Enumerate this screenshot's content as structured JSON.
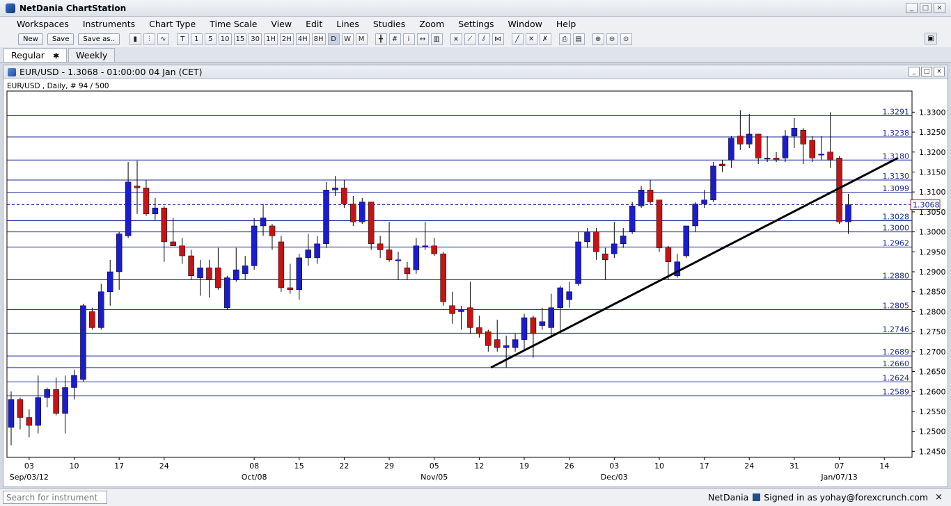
{
  "app": {
    "title": "NetDania ChartStation"
  },
  "window_controls": [
    "_",
    "□",
    "×"
  ],
  "menu": [
    "Workspaces",
    "Instruments",
    "Chart Type",
    "Time Scale",
    "View",
    "Edit",
    "Lines",
    "Studies",
    "Zoom",
    "Settings",
    "Window",
    "Help"
  ],
  "toolbar": {
    "text_buttons": [
      "New",
      "Save",
      "Save as.."
    ],
    "chart_type_icons": [
      "candlestick-icon",
      "ohlc-bar-icon",
      "line-chart-icon"
    ],
    "periods": [
      "T",
      "1",
      "5",
      "10",
      "15",
      "30",
      "1H",
      "2H",
      "4H",
      "8H",
      "D",
      "W",
      "M"
    ],
    "active_period": "D",
    "tool_icons": [
      "crosshair-icon",
      "grid-icon",
      "info-icon",
      "scroll-icon",
      "volume-icon",
      "fibonacci-icon",
      "trendline-icon",
      "channel-icon",
      "gann-icon",
      "draw-line-icon",
      "delete-icon",
      "delete-all-icon",
      "print-icon",
      "print-preview-icon",
      "zoom-in-icon",
      "zoom-out-icon",
      "zoom-reset-icon"
    ]
  },
  "tabs": [
    {
      "label": "Regular",
      "active": true,
      "close": "✱"
    },
    {
      "label": "Weekly",
      "active": false
    }
  ],
  "chart_window": {
    "title": "EUR/USD - 1.3068 - 01:00:00  04 Jan (CET)",
    "info": "EUR/USD , Daily, # 94 / 500",
    "current_price_label": "1.3068"
  },
  "chart_data": {
    "type": "candlestick",
    "instrument": "EUR/USD",
    "timeframe": "Daily",
    "x_ticks": [
      "03",
      "10",
      "17",
      "24",
      "08",
      "15",
      "22",
      "29",
      "05",
      "12",
      "19",
      "26",
      "03",
      "10",
      "17",
      "24",
      "31",
      "07",
      "14"
    ],
    "x_tick_index": [
      2,
      7,
      12,
      17,
      27,
      32,
      37,
      42,
      47,
      52,
      57,
      62,
      67,
      72,
      77,
      82,
      87,
      92,
      97
    ],
    "x_period_labels": [
      {
        "label": "Sep/03/12",
        "index": 2
      },
      {
        "label": "Oct/08",
        "index": 27
      },
      {
        "label": "Nov/05",
        "index": 47
      },
      {
        "label": "Dec/03",
        "index": 67
      },
      {
        "label": "Jan/07/13",
        "index": 92
      }
    ],
    "y_ticks": [
      "1.3300",
      "1.3250",
      "1.3200",
      "1.3150",
      "1.3100",
      "1.3050",
      "1.3000",
      "1.2950",
      "1.2900",
      "1.2850",
      "1.2800",
      "1.2750",
      "1.2700",
      "1.2650",
      "1.2600",
      "1.2550",
      "1.2500",
      "1.2450"
    ],
    "ylim": [
      1.2435,
      1.3325
    ],
    "ref_lines": [
      {
        "label": "1.3291",
        "value": 1.3291
      },
      {
        "label": "1.3238",
        "value": 1.3238
      },
      {
        "label": "1.3180",
        "value": 1.318
      },
      {
        "label": "1.3130",
        "value": 1.313
      },
      {
        "label": "1.3099",
        "value": 1.3099
      },
      {
        "label": "1.3028",
        "value": 1.3028
      },
      {
        "label": "1.3000",
        "value": 1.3
      },
      {
        "label": "1.2962",
        "value": 1.2962
      },
      {
        "label": "1.2880",
        "value": 1.288
      },
      {
        "label": "1.2805",
        "value": 1.2805
      },
      {
        "label": "1.2746",
        "value": 1.2746
      },
      {
        "label": "1.2689",
        "value": 1.2689
      },
      {
        "label": "1.2660",
        "value": 1.266
      },
      {
        "label": "1.2624",
        "value": 1.2624
      },
      {
        "label": "1.2589",
        "value": 1.2589
      }
    ],
    "current_price": 1.3068,
    "trendline": {
      "start": {
        "index": 53.3,
        "value": 1.266
      },
      "end": {
        "index": 98.5,
        "value": 1.3185
      }
    },
    "colors": {
      "bull": "#1c1ccf",
      "bear": "#c41414",
      "ref_line": "#1a2a9a",
      "trendline": "#000000",
      "current_price": "#1a2a9a"
    },
    "candles": [
      {
        "o": 1.251,
        "h": 1.26,
        "l": 1.2465,
        "c": 1.258
      },
      {
        "o": 1.258,
        "h": 1.2585,
        "l": 1.2505,
        "c": 1.2535
      },
      {
        "o": 1.2535,
        "h": 1.2555,
        "l": 1.2485,
        "c": 1.2515
      },
      {
        "o": 1.2515,
        "h": 1.264,
        "l": 1.2495,
        "c": 1.2585
      },
      {
        "o": 1.2585,
        "h": 1.261,
        "l": 1.256,
        "c": 1.2605
      },
      {
        "o": 1.2605,
        "h": 1.2635,
        "l": 1.254,
        "c": 1.2545
      },
      {
        "o": 1.2545,
        "h": 1.264,
        "l": 1.2495,
        "c": 1.261
      },
      {
        "o": 1.261,
        "h": 1.2655,
        "l": 1.258,
        "c": 1.264
      },
      {
        "o": 1.263,
        "h": 1.282,
        "l": 1.2625,
        "c": 1.2815
      },
      {
        "o": 1.28,
        "h": 1.281,
        "l": 1.2755,
        "c": 1.276
      },
      {
        "o": 1.276,
        "h": 1.287,
        "l": 1.2755,
        "c": 1.285
      },
      {
        "o": 1.285,
        "h": 1.293,
        "l": 1.2815,
        "c": 1.29
      },
      {
        "o": 1.29,
        "h": 1.3,
        "l": 1.2855,
        "c": 1.2995
      },
      {
        "o": 1.299,
        "h": 1.3175,
        "l": 1.2985,
        "c": 1.3125
      },
      {
        "o": 1.3115,
        "h": 1.3178,
        "l": 1.3045,
        "c": 1.311
      },
      {
        "o": 1.311,
        "h": 1.313,
        "l": 1.304,
        "c": 1.3045
      },
      {
        "o": 1.3045,
        "h": 1.3085,
        "l": 1.303,
        "c": 1.306
      },
      {
        "o": 1.306,
        "h": 1.3065,
        "l": 1.2925,
        "c": 1.2975
      },
      {
        "o": 1.2975,
        "h": 1.3035,
        "l": 1.297,
        "c": 1.2965
      },
      {
        "o": 1.2965,
        "h": 1.2985,
        "l": 1.292,
        "c": 1.294
      },
      {
        "o": 1.294,
        "h": 1.2955,
        "l": 1.288,
        "c": 1.289
      },
      {
        "o": 1.2885,
        "h": 1.293,
        "l": 1.284,
        "c": 1.291
      },
      {
        "o": 1.291,
        "h": 1.293,
        "l": 1.2835,
        "c": 1.288
      },
      {
        "o": 1.291,
        "h": 1.296,
        "l": 1.2855,
        "c": 1.286
      },
      {
        "o": 1.281,
        "h": 1.289,
        "l": 1.2805,
        "c": 1.2885
      },
      {
        "o": 1.288,
        "h": 1.296,
        "l": 1.2875,
        "c": 1.2905
      },
      {
        "o": 1.2895,
        "h": 1.294,
        "l": 1.288,
        "c": 1.2915
      },
      {
        "o": 1.2915,
        "h": 1.3035,
        "l": 1.2905,
        "c": 1.3015
      },
      {
        "o": 1.3015,
        "h": 1.307,
        "l": 1.299,
        "c": 1.3035
      },
      {
        "o": 1.3015,
        "h": 1.302,
        "l": 1.2955,
        "c": 1.299
      },
      {
        "o": 1.2975,
        "h": 1.299,
        "l": 1.285,
        "c": 1.286
      },
      {
        "o": 1.286,
        "h": 1.292,
        "l": 1.2845,
        "c": 1.2855
      },
      {
        "o": 1.2855,
        "h": 1.2945,
        "l": 1.283,
        "c": 1.2935
      },
      {
        "o": 1.2935,
        "h": 1.2995,
        "l": 1.2915,
        "c": 1.2955
      },
      {
        "o": 1.2935,
        "h": 1.299,
        "l": 1.292,
        "c": 1.297
      },
      {
        "o": 1.297,
        "h": 1.3125,
        "l": 1.296,
        "c": 1.3105
      },
      {
        "o": 1.3105,
        "h": 1.314,
        "l": 1.309,
        "c": 1.311
      },
      {
        "o": 1.311,
        "h": 1.313,
        "l": 1.306,
        "c": 1.307
      },
      {
        "o": 1.307,
        "h": 1.309,
        "l": 1.3015,
        "c": 1.3025
      },
      {
        "o": 1.3025,
        "h": 1.3085,
        "l": 1.302,
        "c": 1.3075
      },
      {
        "o": 1.3075,
        "h": 1.3075,
        "l": 1.2955,
        "c": 1.297
      },
      {
        "o": 1.297,
        "h": 1.299,
        "l": 1.2935,
        "c": 1.2955
      },
      {
        "o": 1.2955,
        "h": 1.3025,
        "l": 1.2925,
        "c": 1.293
      },
      {
        "o": 1.293,
        "h": 1.295,
        "l": 1.288,
        "c": 1.293
      },
      {
        "o": 1.291,
        "h": 1.2925,
        "l": 1.288,
        "c": 1.2895
      },
      {
        "o": 1.2905,
        "h": 1.2985,
        "l": 1.2895,
        "c": 1.2965
      },
      {
        "o": 1.2965,
        "h": 1.3025,
        "l": 1.2955,
        "c": 1.2965
      },
      {
        "o": 1.2965,
        "h": 1.2985,
        "l": 1.294,
        "c": 1.2945
      },
      {
        "o": 1.2945,
        "h": 1.295,
        "l": 1.2815,
        "c": 1.2825
      },
      {
        "o": 1.2815,
        "h": 1.285,
        "l": 1.277,
        "c": 1.2795
      },
      {
        "o": 1.28,
        "h": 1.2815,
        "l": 1.2755,
        "c": 1.2805
      },
      {
        "o": 1.281,
        "h": 1.2875,
        "l": 1.2745,
        "c": 1.276
      },
      {
        "o": 1.276,
        "h": 1.279,
        "l": 1.2735,
        "c": 1.2745
      },
      {
        "o": 1.275,
        "h": 1.2755,
        "l": 1.27,
        "c": 1.2715
      },
      {
        "o": 1.273,
        "h": 1.278,
        "l": 1.27,
        "c": 1.271
      },
      {
        "o": 1.271,
        "h": 1.274,
        "l": 1.266,
        "c": 1.2715
      },
      {
        "o": 1.271,
        "h": 1.2745,
        "l": 1.27,
        "c": 1.273
      },
      {
        "o": 1.273,
        "h": 1.2795,
        "l": 1.2705,
        "c": 1.2785
      },
      {
        "o": 1.2785,
        "h": 1.279,
        "l": 1.2685,
        "c": 1.2745
      },
      {
        "o": 1.2765,
        "h": 1.281,
        "l": 1.2755,
        "c": 1.2775
      },
      {
        "o": 1.276,
        "h": 1.2845,
        "l": 1.2735,
        "c": 1.281
      },
      {
        "o": 1.281,
        "h": 1.2865,
        "l": 1.2745,
        "c": 1.286
      },
      {
        "o": 1.283,
        "h": 1.2875,
        "l": 1.281,
        "c": 1.285
      },
      {
        "o": 1.287,
        "h": 1.3,
        "l": 1.2865,
        "c": 1.2975
      },
      {
        "o": 1.2975,
        "h": 1.301,
        "l": 1.296,
        "c": 1.3
      },
      {
        "o": 1.3,
        "h": 1.301,
        "l": 1.293,
        "c": 1.295
      },
      {
        "o": 1.2945,
        "h": 1.296,
        "l": 1.288,
        "c": 1.293
      },
      {
        "o": 1.2945,
        "h": 1.3025,
        "l": 1.2935,
        "c": 1.297
      },
      {
        "o": 1.297,
        "h": 1.301,
        "l": 1.296,
        "c": 1.299
      },
      {
        "o": 1.3,
        "h": 1.3075,
        "l": 1.2995,
        "c": 1.3065
      },
      {
        "o": 1.3065,
        "h": 1.3115,
        "l": 1.306,
        "c": 1.3105
      },
      {
        "o": 1.3105,
        "h": 1.313,
        "l": 1.307,
        "c": 1.3075
      },
      {
        "o": 1.308,
        "h": 1.308,
        "l": 1.295,
        "c": 1.296
      },
      {
        "o": 1.296,
        "h": 1.2965,
        "l": 1.288,
        "c": 1.2925
      },
      {
        "o": 1.289,
        "h": 1.2945,
        "l": 1.2885,
        "c": 1.2925
      },
      {
        "o": 1.294,
        "h": 1.3015,
        "l": 1.2935,
        "c": 1.3015
      },
      {
        "o": 1.3015,
        "h": 1.3075,
        "l": 1.3,
        "c": 1.307
      },
      {
        "o": 1.307,
        "h": 1.3105,
        "l": 1.306,
        "c": 1.308
      },
      {
        "o": 1.308,
        "h": 1.3175,
        "l": 1.3075,
        "c": 1.3165
      },
      {
        "o": 1.317,
        "h": 1.318,
        "l": 1.315,
        "c": 1.3165
      },
      {
        "o": 1.318,
        "h": 1.324,
        "l": 1.316,
        "c": 1.3235
      },
      {
        "o": 1.324,
        "h": 1.3305,
        "l": 1.3205,
        "c": 1.322
      },
      {
        "o": 1.322,
        "h": 1.3295,
        "l": 1.321,
        "c": 1.3245
      },
      {
        "o": 1.3245,
        "h": 1.3245,
        "l": 1.317,
        "c": 1.3185
      },
      {
        "o": 1.3185,
        "h": 1.324,
        "l": 1.3175,
        "c": 1.3185
      },
      {
        "o": 1.3185,
        "h": 1.32,
        "l": 1.3175,
        "c": 1.318
      },
      {
        "o": 1.3185,
        "h": 1.3255,
        "l": 1.3175,
        "c": 1.324
      },
      {
        "o": 1.324,
        "h": 1.3285,
        "l": 1.321,
        "c": 1.326
      },
      {
        "o": 1.3255,
        "h": 1.326,
        "l": 1.317,
        "c": 1.322
      },
      {
        "o": 1.323,
        "h": 1.324,
        "l": 1.3175,
        "c": 1.3185
      },
      {
        "o": 1.3195,
        "h": 1.324,
        "l": 1.318,
        "c": 1.3195
      },
      {
        "o": 1.32,
        "h": 1.33,
        "l": 1.316,
        "c": 1.318
      },
      {
        "o": 1.3185,
        "h": 1.319,
        "l": 1.302,
        "c": 1.3025
      },
      {
        "o": 1.3025,
        "h": 1.3095,
        "l": 1.2995,
        "c": 1.3068
      }
    ]
  },
  "status": {
    "search_placeholder": "Search for instrument",
    "brand": "NetDania",
    "signed_in": "Signed in as yohay@forexcrunch.com",
    "close": "×"
  }
}
